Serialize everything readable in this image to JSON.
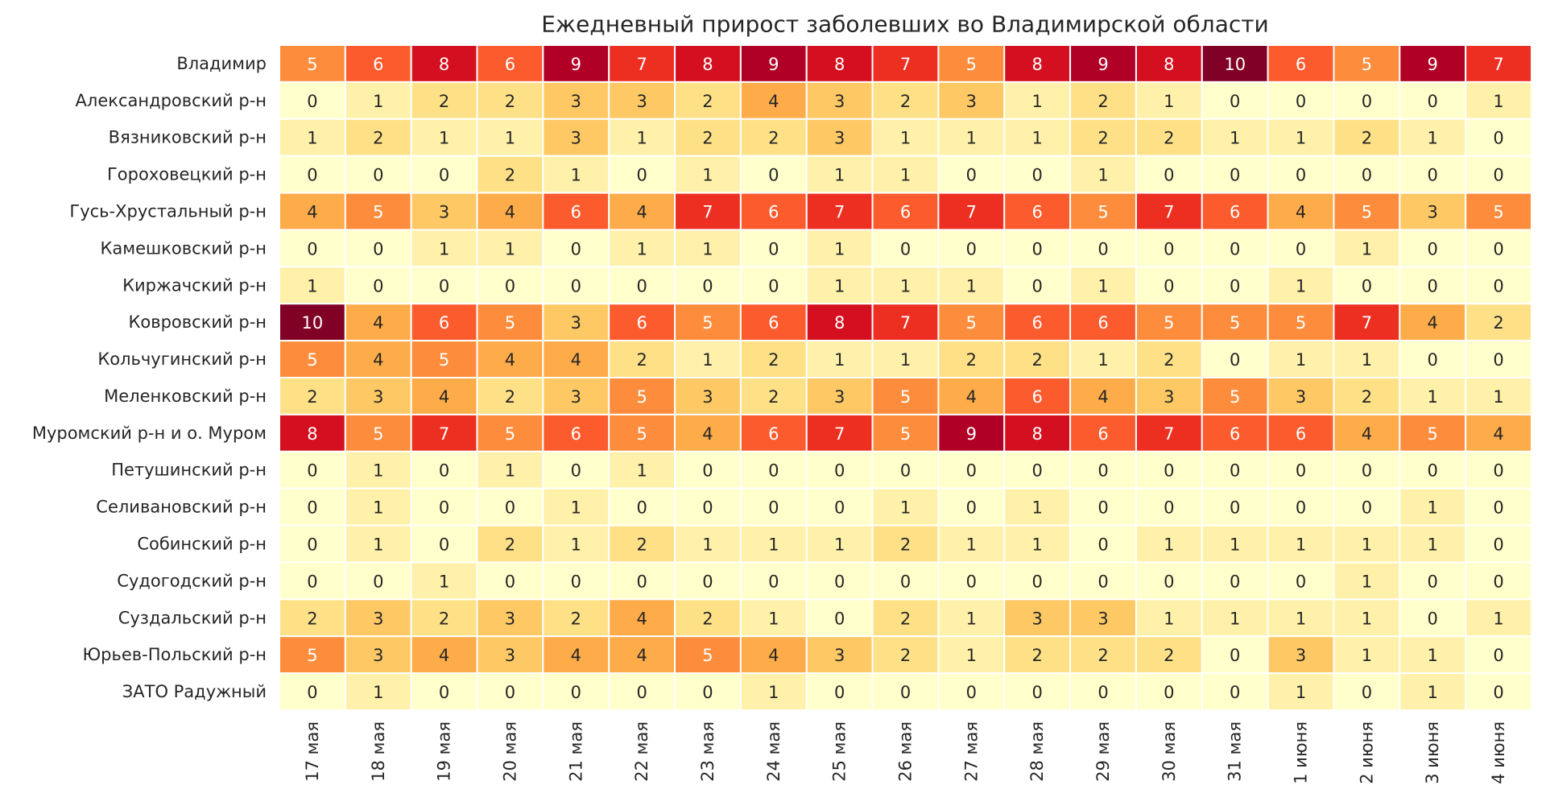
{
  "chart_data": {
    "type": "heatmap",
    "title": "Ежедневный прирост заболевших во Владимирской области",
    "x": [
      "17 мая",
      "18 мая",
      "19 мая",
      "20 мая",
      "21 мая",
      "22 мая",
      "23 мая",
      "24 мая",
      "25 мая",
      "26 мая",
      "27 мая",
      "28 мая",
      "29 мая",
      "30 мая",
      "31 мая",
      "1 июня",
      "2 июня",
      "3 июня",
      "4 июня"
    ],
    "categories": [
      "Владимир",
      "Александровский р-н",
      "Вязниковский р-н",
      "Гороховецкий р-н",
      "Гусь-Хрустальный р-н",
      "Камешковский р-н",
      "Киржачский р-н",
      "Ковровский р-н",
      "Кольчугинский р-н",
      "Меленковский р-н",
      "Муромский р-н и о. Муром",
      "Петушинский р-н",
      "Селивановский р-н",
      "Собинский р-н",
      "Судогодский р-н",
      "Суздальский р-н",
      "Юрьев-Польский р-н",
      "ЗАТО Радужный"
    ],
    "values": [
      [
        5,
        6,
        8,
        6,
        9,
        7,
        8,
        9,
        8,
        7,
        5,
        8,
        9,
        8,
        10,
        6,
        5,
        9,
        7
      ],
      [
        0,
        1,
        2,
        2,
        3,
        3,
        2,
        4,
        3,
        2,
        3,
        1,
        2,
        1,
        0,
        0,
        0,
        0,
        1
      ],
      [
        1,
        2,
        1,
        1,
        3,
        1,
        2,
        2,
        3,
        1,
        1,
        1,
        2,
        2,
        1,
        1,
        2,
        1,
        0
      ],
      [
        0,
        0,
        0,
        2,
        1,
        0,
        1,
        0,
        1,
        1,
        0,
        0,
        1,
        0,
        0,
        0,
        0,
        0,
        0
      ],
      [
        4,
        5,
        3,
        4,
        6,
        4,
        7,
        6,
        7,
        6,
        7,
        6,
        5,
        7,
        6,
        4,
        5,
        3,
        5
      ],
      [
        0,
        0,
        1,
        1,
        0,
        1,
        1,
        0,
        1,
        0,
        0,
        0,
        0,
        0,
        0,
        0,
        1,
        0,
        0
      ],
      [
        1,
        0,
        0,
        0,
        0,
        0,
        0,
        0,
        1,
        1,
        1,
        0,
        1,
        0,
        0,
        1,
        0,
        0,
        0
      ],
      [
        10,
        4,
        6,
        5,
        3,
        6,
        5,
        6,
        8,
        7,
        5,
        6,
        6,
        5,
        5,
        5,
        7,
        4,
        2
      ],
      [
        5,
        4,
        5,
        4,
        4,
        2,
        1,
        2,
        1,
        1,
        2,
        2,
        1,
        2,
        0,
        1,
        1,
        0,
        0
      ],
      [
        2,
        3,
        4,
        2,
        3,
        5,
        3,
        2,
        3,
        5,
        4,
        6,
        4,
        3,
        5,
        3,
        2,
        1,
        1
      ],
      [
        8,
        5,
        7,
        5,
        6,
        5,
        4,
        6,
        7,
        5,
        9,
        8,
        6,
        7,
        6,
        6,
        4,
        5,
        4
      ],
      [
        0,
        1,
        0,
        1,
        0,
        1,
        0,
        0,
        0,
        0,
        0,
        0,
        0,
        0,
        0,
        0,
        0,
        0,
        0
      ],
      [
        0,
        1,
        0,
        0,
        1,
        0,
        0,
        0,
        0,
        1,
        0,
        1,
        0,
        0,
        0,
        0,
        0,
        1,
        0
      ],
      [
        0,
        1,
        0,
        2,
        1,
        2,
        1,
        1,
        1,
        2,
        1,
        1,
        0,
        1,
        1,
        1,
        1,
        1,
        0
      ],
      [
        0,
        0,
        1,
        0,
        0,
        0,
        0,
        0,
        0,
        0,
        0,
        0,
        0,
        0,
        0,
        0,
        1,
        0,
        0
      ],
      [
        2,
        3,
        2,
        3,
        2,
        4,
        2,
        1,
        0,
        2,
        1,
        3,
        3,
        1,
        1,
        1,
        1,
        0,
        1
      ],
      [
        5,
        3,
        4,
        3,
        4,
        4,
        5,
        4,
        3,
        2,
        1,
        2,
        2,
        2,
        0,
        3,
        1,
        1,
        0
      ],
      [
        0,
        1,
        0,
        0,
        0,
        0,
        0,
        1,
        0,
        0,
        0,
        0,
        0,
        0,
        0,
        1,
        0,
        1,
        0
      ]
    ],
    "zlim": [
      0,
      10
    ],
    "colors": [
      "#ffffcc",
      "#ffeda0",
      "#fed976",
      "#feb24c",
      "#fd8d3c",
      "#fc4e2a",
      "#e31a1c",
      "#bd0026",
      "#800026"
    ]
  }
}
